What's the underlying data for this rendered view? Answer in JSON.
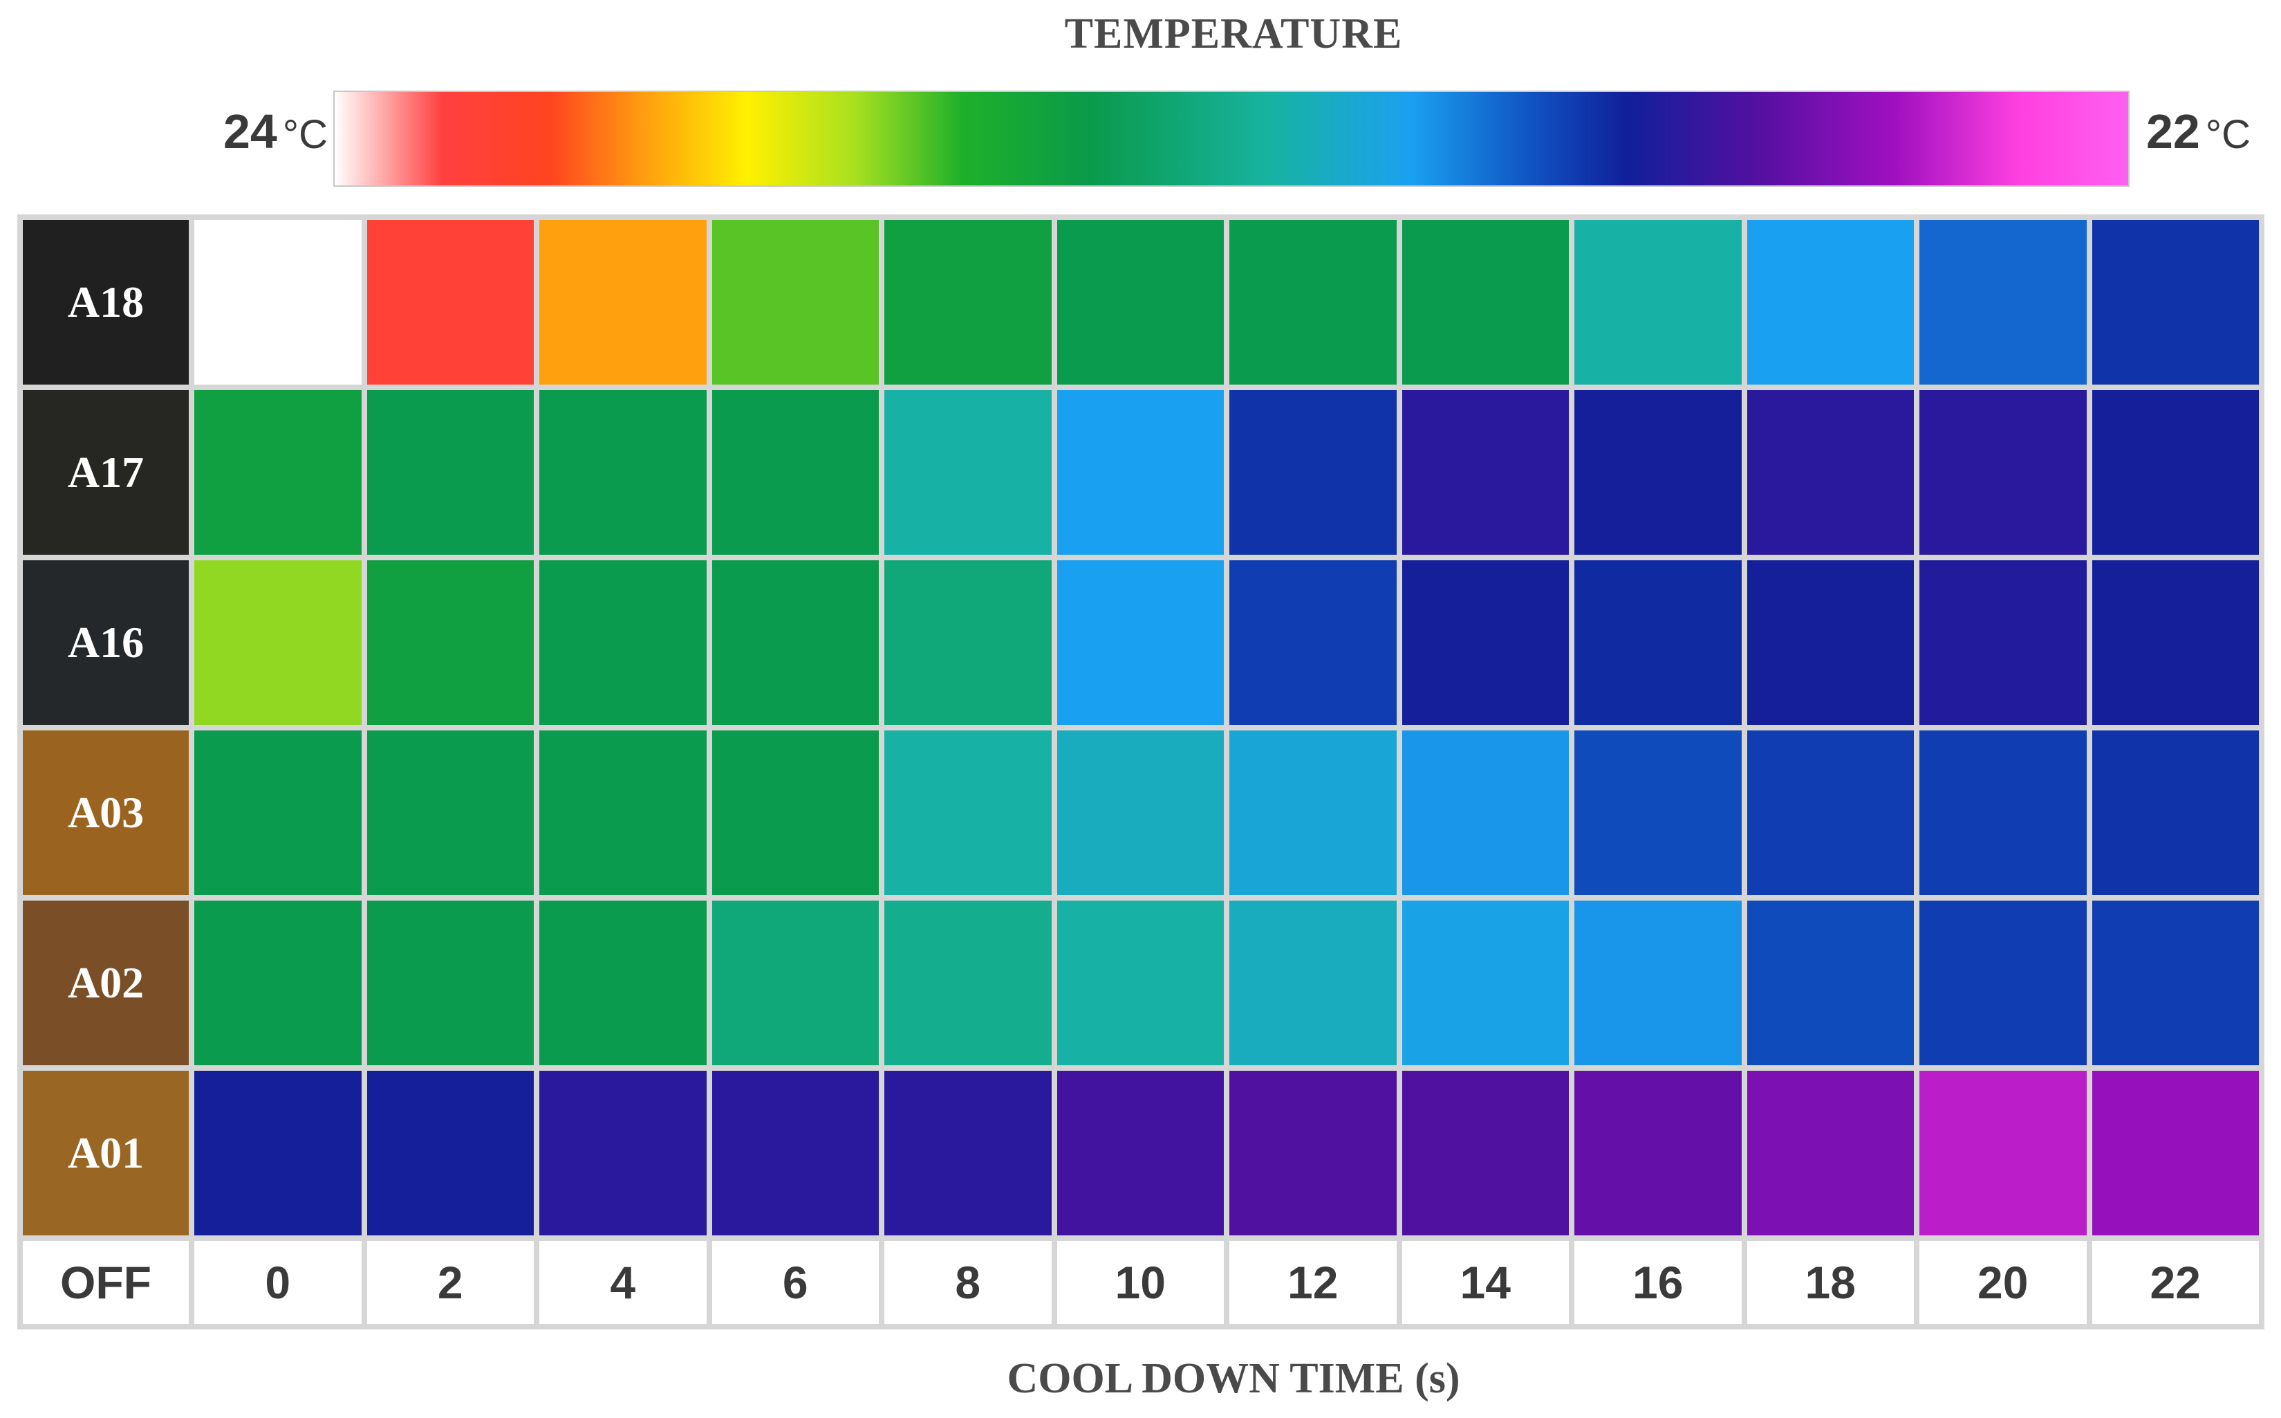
{
  "chart_data": {
    "type": "heatmap",
    "title": "TEMPERATURE",
    "xlabel": "COOL DOWN TIME (s)",
    "ylabel": "",
    "colorbar": {
      "min_label": "24",
      "max_label": "22",
      "unit": "°C",
      "min_value": 24,
      "max_value": 22
    },
    "off_label": "OFF",
    "x": [
      "0",
      "2",
      "4",
      "6",
      "8",
      "10",
      "12",
      "14",
      "16",
      "18",
      "20",
      "22"
    ],
    "rows": [
      {
        "label": "A18",
        "swatch": "#202020",
        "values": [
          24.0,
          23.85,
          23.65,
          23.35,
          23.2,
          23.15,
          23.15,
          23.15,
          22.95,
          22.8,
          22.7,
          22.6
        ]
      },
      {
        "label": "A17",
        "swatch": "#262622",
        "values": [
          23.2,
          23.15,
          23.15,
          23.15,
          22.95,
          22.8,
          22.6,
          22.5,
          22.55,
          22.5,
          22.5,
          22.55
        ]
      },
      {
        "label": "A16",
        "swatch": "#24282a",
        "values": [
          23.4,
          23.2,
          23.15,
          23.15,
          23.05,
          22.8,
          22.62,
          22.55,
          22.58,
          22.55,
          22.52,
          22.55
        ]
      },
      {
        "label": "A03",
        "swatch": "#9a6420",
        "values": [
          23.15,
          23.15,
          23.15,
          23.15,
          22.95,
          22.9,
          22.85,
          22.78,
          22.65,
          22.62,
          22.62,
          22.6
        ]
      },
      {
        "label": "A02",
        "swatch": "#7a4e26",
        "values": [
          23.15,
          23.15,
          23.15,
          23.05,
          23.0,
          22.95,
          22.9,
          22.82,
          22.78,
          22.65,
          22.62,
          22.62
        ]
      },
      {
        "label": "A01",
        "swatch": "#9a6624",
        "values": [
          22.55,
          22.55,
          22.5,
          22.5,
          22.5,
          22.45,
          22.42,
          22.42,
          22.38,
          22.33,
          22.22,
          22.28
        ]
      }
    ]
  }
}
